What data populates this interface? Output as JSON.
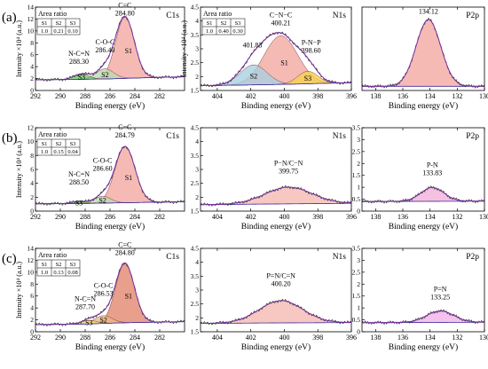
{
  "figure": {
    "row_labels": [
      "(a)",
      "(b)",
      "(c)"
    ]
  },
  "chart_data": [
    {
      "type": "area",
      "panel": "a-C1s",
      "title": "C1s",
      "xlabel": "Binding energy (eV)",
      "ylabel": "Intensity ×10⁴ (a.u.)",
      "xlim": [
        292,
        280
      ],
      "ylim": [
        0,
        14
      ],
      "xticks": [
        292,
        290,
        288,
        286,
        284,
        282
      ],
      "yticks": [
        0,
        2,
        4,
        6,
        8,
        10,
        12,
        14
      ],
      "area_ratio": {
        "title": "Area ratio",
        "headers": [
          "S1",
          "S2",
          "S3"
        ],
        "values": [
          "1.0",
          "0.21",
          "0.10"
        ]
      },
      "baseline": [
        [
          292,
          1.8
        ],
        [
          289,
          1.85
        ],
        [
          286,
          1.95
        ],
        [
          283,
          2.15
        ],
        [
          280,
          2.3
        ]
      ],
      "series": [
        {
          "label": "S1",
          "center": 284.8,
          "height": 10.3,
          "sigma": 0.75,
          "color": "#f4a6a0"
        },
        {
          "label": "S2",
          "center": 286.4,
          "height": 1.7,
          "sigma": 0.7,
          "color": "#b8dbb0"
        },
        {
          "label": "S3",
          "center": 288.3,
          "height": 0.9,
          "sigma": 0.6,
          "color": "#66cc66"
        }
      ],
      "annotations": [
        {
          "text": "C=C",
          "value": "284.80",
          "x": 284.8,
          "y": 12.6
        },
        {
          "text": "C-O-C",
          "value": "286.40",
          "x": 286.4,
          "y": 6.4
        },
        {
          "text": "N-C=N",
          "value": "288.30",
          "x": 288.5,
          "y": 4.5
        }
      ]
    },
    {
      "type": "area",
      "panel": "a-N1s",
      "title": "N1s",
      "xlabel": "Binding energy (eV)",
      "ylabel": "Intensity ×10⁴ (a.u.)",
      "xlim": [
        405,
        396
      ],
      "ylim": [
        1.5,
        4.5
      ],
      "xticks": [
        404,
        402,
        400,
        398,
        396
      ],
      "yticks": [
        1.5,
        2.0,
        2.5,
        3.0,
        3.5,
        4.0,
        4.5
      ],
      "area_ratio": {
        "title": "Area ratio",
        "headers": [
          "S1",
          "S2",
          "S3"
        ],
        "values": [
          "1.0",
          "0.40",
          "0.30"
        ]
      },
      "baseline": [
        [
          405,
          1.67
        ],
        [
          400,
          1.72
        ],
        [
          396,
          1.78
        ]
      ],
      "series": [
        {
          "label": "S1",
          "center": 400.21,
          "height": 1.75,
          "sigma": 1.0,
          "color": "#f4a6a0"
        },
        {
          "label": "S2",
          "center": 401.83,
          "height": 0.72,
          "sigma": 0.8,
          "color": "#a8cfe0"
        },
        {
          "label": "S3",
          "center": 398.6,
          "height": 0.45,
          "sigma": 0.6,
          "color": "#f5d24c"
        }
      ],
      "annotations": [
        {
          "text": "C−N−C",
          "value": "400.21",
          "x": 400.21,
          "y": 3.85
        },
        {
          "text": "",
          "value": "401.83",
          "x": 401.9,
          "y": 3.05
        },
        {
          "text": "P-N−P",
          "value": "398.60",
          "x": 398.4,
          "y": 2.85
        }
      ]
    },
    {
      "type": "area",
      "panel": "a-P2p",
      "title": "P2p",
      "xlabel": "Binding energy (eV)",
      "ylabel": "",
      "xlim": [
        139,
        130
      ],
      "ylim": [
        0,
        1
      ],
      "xticks": [
        138,
        136,
        134,
        132,
        130
      ],
      "yticks": [],
      "baseline": [
        [
          139,
          0.05
        ],
        [
          130,
          0.05
        ]
      ],
      "series": [
        {
          "label": "",
          "center": 134.12,
          "height": 0.8,
          "sigma": 0.9,
          "color": "#f4a6a0"
        }
      ],
      "annotations": [
        {
          "text": "",
          "value": "134.12",
          "x": 134.12,
          "y": 0.92
        }
      ]
    },
    {
      "type": "area",
      "panel": "b-C1s",
      "title": "C1s",
      "xlabel": "Binding energy (eV)",
      "ylabel": "Intensity ×10⁴ (a.u.)",
      "xlim": [
        292,
        280
      ],
      "ylim": [
        0,
        12
      ],
      "xticks": [
        292,
        290,
        288,
        286,
        284,
        282
      ],
      "yticks": [
        0,
        2,
        4,
        6,
        8,
        10,
        12
      ],
      "area_ratio": {
        "title": "Area ratio",
        "headers": [
          "S1",
          "S2",
          "S3"
        ],
        "values": [
          "1.0",
          "0.15",
          "0.04"
        ]
      },
      "baseline": [
        [
          292,
          1.05
        ],
        [
          288,
          1.1
        ],
        [
          285,
          1.2
        ],
        [
          280,
          1.35
        ]
      ],
      "series": [
        {
          "label": "S1",
          "center": 284.79,
          "height": 8.1,
          "sigma": 0.8,
          "color": "#f4a6a0"
        },
        {
          "label": "S2",
          "center": 286.6,
          "height": 1.0,
          "sigma": 0.65,
          "color": "#b8dbb0"
        },
        {
          "label": "S3",
          "center": 288.5,
          "height": 0.3,
          "sigma": 0.55,
          "color": "#66cc66"
        }
      ],
      "annotations": [
        {
          "text": "C=C",
          "value": "284.79",
          "x": 284.8,
          "y": 10.6
        },
        {
          "text": "C-O-C",
          "value": "286.60",
          "x": 286.6,
          "y": 5.8
        },
        {
          "text": "N-C=N",
          "value": "288.50",
          "x": 288.5,
          "y": 3.8
        }
      ]
    },
    {
      "type": "area",
      "panel": "b-N1s",
      "title": "N1s",
      "xlabel": "Binding energy (eV)",
      "ylabel": "",
      "xlim": [
        405,
        396
      ],
      "ylim": [
        1.5,
        4.5
      ],
      "xticks": [
        404,
        402,
        400,
        398,
        396
      ],
      "yticks": [
        1.5,
        2.0,
        2.5,
        3.0,
        3.5,
        4.0,
        4.5
      ],
      "baseline": [
        [
          405,
          1.73
        ],
        [
          400,
          1.76
        ],
        [
          396,
          1.78
        ]
      ],
      "series": [
        {
          "label": "",
          "center": 399.75,
          "height": 0.6,
          "sigma": 1.4,
          "color": "#f4b8b0"
        }
      ],
      "annotations": [
        {
          "text": "P−N/C−N",
          "value": "399.75",
          "x": 399.75,
          "y": 2.85
        }
      ]
    },
    {
      "type": "area",
      "panel": "b-P2p",
      "title": "P2p",
      "xlabel": "Binding energy (eV)",
      "ylabel": "",
      "xlim": [
        139,
        130
      ],
      "ylim": [
        0,
        3.5
      ],
      "xticks": [
        138,
        136,
        134,
        132,
        130
      ],
      "yticks": [
        0,
        0.5,
        1.0,
        1.5,
        2.0,
        2.5,
        3.0,
        3.5
      ],
      "baseline": [
        [
          139,
          0.4
        ],
        [
          130,
          0.42
        ]
      ],
      "series": [
        {
          "label": "",
          "center": 133.83,
          "height": 0.58,
          "sigma": 0.85,
          "color": "#f2b0d8"
        }
      ],
      "annotations": [
        {
          "text": "P-N",
          "value": "133.83",
          "x": 133.83,
          "y": 1.5
        }
      ]
    },
    {
      "type": "area",
      "panel": "c-C1s",
      "title": "C1s",
      "xlabel": "Binding energy (eV)",
      "ylabel": "Intensity ×10⁴ (a.u.)",
      "xlim": [
        292,
        280
      ],
      "ylim": [
        0,
        14
      ],
      "xticks": [
        292,
        290,
        288,
        286,
        284,
        282
      ],
      "yticks": [
        0,
        2,
        4,
        6,
        8,
        10,
        12,
        14
      ],
      "area_ratio": {
        "title": "Area ratio",
        "headers": [
          "S1",
          "S2",
          "S3"
        ],
        "values": [
          "1.0",
          "0.13",
          "0.08"
        ]
      },
      "baseline": [
        [
          292,
          1.2
        ],
        [
          288,
          1.3
        ],
        [
          285,
          1.5
        ],
        [
          280,
          1.7
        ]
      ],
      "series": [
        {
          "label": "S1",
          "center": 284.8,
          "height": 10.0,
          "sigma": 0.75,
          "color": "#e2846a"
        },
        {
          "label": "S2",
          "center": 286.53,
          "height": 1.3,
          "sigma": 0.7,
          "color": "#e8b888"
        },
        {
          "label": "S3",
          "center": 287.7,
          "height": 0.6,
          "sigma": 0.6,
          "color": "#f0e060"
        }
      ],
      "annotations": [
        {
          "text": "C=C",
          "value": "284.80",
          "x": 284.8,
          "y": 12.9
        },
        {
          "text": "C-O-C",
          "value": "286.53",
          "x": 286.53,
          "y": 6.0
        },
        {
          "text": "N-C=N",
          "value": "287.70",
          "x": 288.0,
          "y": 3.8
        }
      ]
    },
    {
      "type": "area",
      "panel": "c-N1s",
      "title": "N1s",
      "xlabel": "Binding energy (eV)",
      "ylabel": "",
      "xlim": [
        405,
        396
      ],
      "ylim": [
        1.5,
        4.5
      ],
      "xticks": [
        404,
        402,
        400,
        398,
        396
      ],
      "yticks": [
        1.5,
        2.0,
        2.5,
        3.0,
        3.5,
        4.0,
        4.5
      ],
      "baseline": [
        [
          405,
          1.8
        ],
        [
          400,
          1.82
        ],
        [
          396,
          1.83
        ]
      ],
      "series": [
        {
          "label": "",
          "center": 400.2,
          "height": 0.8,
          "sigma": 1.3,
          "color": "#f4b8b0"
        }
      ],
      "annotations": [
        {
          "text": "P=N/C=N",
          "value": "400.20",
          "x": 400.2,
          "y": 3.15
        }
      ]
    },
    {
      "type": "area",
      "panel": "c-P2p",
      "title": "P2p",
      "xlabel": "Binding energy (eV)",
      "ylabel": "",
      "xlim": [
        139,
        130
      ],
      "ylim": [
        0,
        3.5
      ],
      "xticks": [
        138,
        136,
        134,
        132,
        130
      ],
      "yticks": [
        0,
        0.5,
        1.0,
        1.5,
        2.0,
        2.5,
        3.0,
        3.5
      ],
      "baseline": [
        [
          139,
          0.38
        ],
        [
          130,
          0.4
        ]
      ],
      "series": [
        {
          "label": "",
          "center": 133.25,
          "height": 0.48,
          "sigma": 1.0,
          "color": "#f2b0e8"
        }
      ],
      "annotations": [
        {
          "text": "P=N",
          "value": "133.25",
          "x": 133.25,
          "y": 1.35
        }
      ]
    }
  ]
}
